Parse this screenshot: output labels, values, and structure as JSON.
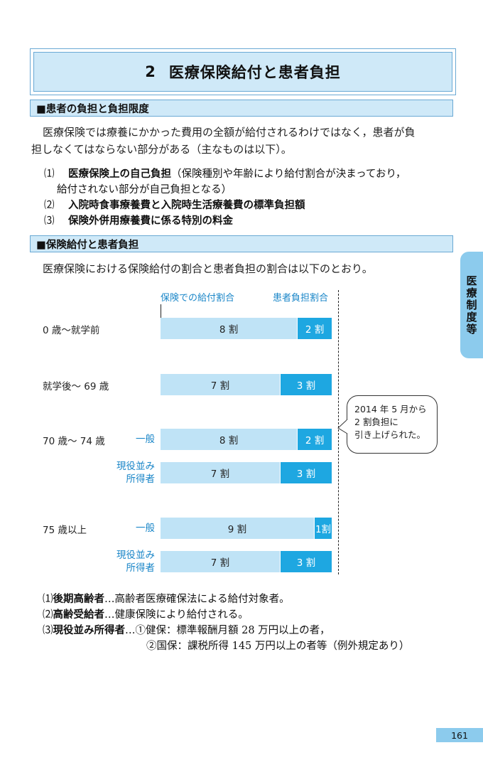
{
  "title": {
    "number": "2",
    "text": "医療保険給付と患者負担"
  },
  "section1": {
    "heading": "■患者の負担と負担限度",
    "paragraph_line1": "医療保険では療養にかかった費用の全額が給付されるわけではなく，患者が負",
    "paragraph_line2": "担しなくてはならない部分がある（主なものは以下）。",
    "items": [
      {
        "num": "⑴",
        "bold": "医療保険上の自己負担",
        "rest": "（保険種別や年齢により給付割合が決まっており，",
        "cont": "給付されない部分が自己負担となる）"
      },
      {
        "num": "⑵",
        "bold": "入院時食事療養費と入院時生活療養費の標準負担額",
        "rest": "",
        "cont": ""
      },
      {
        "num": "⑶",
        "bold": "保険外併用療養費に係る特別の料金",
        "rest": "",
        "cont": ""
      }
    ]
  },
  "section2": {
    "heading": "■保険給付と患者負担",
    "paragraph": "医療保険における保険給付の割合と患者負担の割合は以下のとおり。"
  },
  "chart_data": {
    "type": "bar",
    "stacked": true,
    "orientation": "horizontal",
    "series": [
      {
        "name": "保険での給付割合",
        "values": [
          8,
          7,
          8,
          7,
          9,
          7
        ]
      },
      {
        "name": "患者負担割合",
        "values": [
          2,
          3,
          2,
          3,
          1,
          3
        ]
      }
    ],
    "rows": [
      {
        "group": "0 歳～就学前",
        "sub": "",
        "benefit_label": "8 割",
        "patient_label": "2 割"
      },
      {
        "group": "就学後～ 69 歳",
        "sub": "",
        "benefit_label": "7 割",
        "patient_label": "3 割"
      },
      {
        "group": "70 歳～ 74 歳",
        "sub": "一般",
        "benefit_label": "8 割",
        "patient_label": "2 割"
      },
      {
        "group": "",
        "sub": "現役並み\n所得者",
        "benefit_label": "7 割",
        "patient_label": "3 割"
      },
      {
        "group": "75 歳以上",
        "sub": "一般",
        "benefit_label": "9 割",
        "patient_label": "1割"
      },
      {
        "group": "",
        "sub": "現役並み\n所得者",
        "benefit_label": "7 割",
        "patient_label": "3 割"
      }
    ],
    "unit_total": 10,
    "callout": {
      "line1": "2014 年 5 月から",
      "line2": "2 割負担に",
      "line3": "引き上げられた。"
    },
    "colors": {
      "benefit": "#bfe3f6",
      "patient": "#1ea7e1",
      "label_blue": "#1a86c8"
    }
  },
  "notes": [
    {
      "num": "⑴",
      "term": "後期高齢者",
      "text": "…高齢者医療確保法による給付対象者。"
    },
    {
      "num": "⑵",
      "term": "高齢受給者",
      "text": "…健康保険により給付される。"
    },
    {
      "num": "⑶",
      "term": "現役並み所得者",
      "text": "…①健保：標準報酬月額 28 万円以上の者，"
    }
  ],
  "notes_line4": "②国保：課税所得 145 万円以上の者等（例外規定あり）",
  "side_tab": "医療制度等",
  "page_number": "161"
}
